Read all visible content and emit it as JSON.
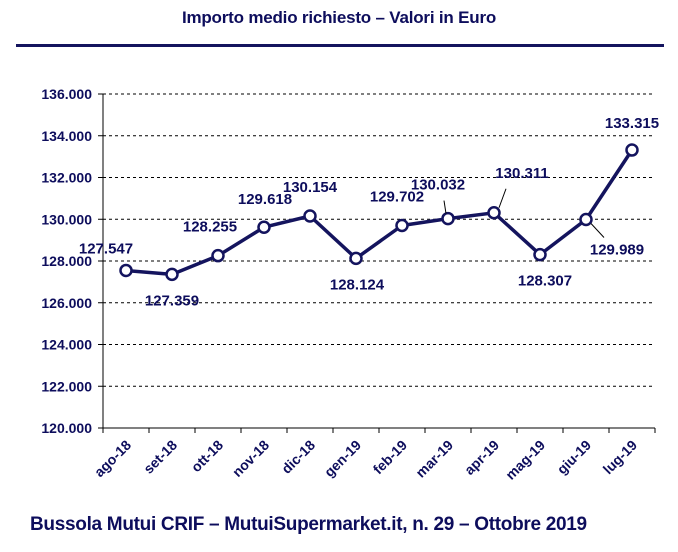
{
  "chart_data": {
    "type": "line",
    "title": "Importo medio richiesto – Valori in Euro",
    "categories": [
      "ago-18",
      "set-18",
      "ott-18",
      "nov-18",
      "dic-18",
      "gen-19",
      "feb-19",
      "mar-19",
      "apr-19",
      "mag-19",
      "giu-19",
      "lug-19"
    ],
    "values": [
      127547,
      127359,
      128255,
      129618,
      130154,
      128124,
      129702,
      130032,
      130311,
      128307,
      129989,
      133315
    ],
    "data_labels": [
      "127.547",
      "127.359",
      "128.255",
      "129.618",
      "130.154",
      "128.124",
      "129.702",
      "130.032",
      "130.311",
      "128.307",
      "129.989",
      "133.315"
    ],
    "ylim": [
      120000,
      136000
    ],
    "y_ticks": [
      120000,
      122000,
      124000,
      126000,
      128000,
      130000,
      132000,
      134000,
      136000
    ],
    "y_tick_labels": [
      "120.000",
      "122.000",
      "124.000",
      "126.000",
      "128.000",
      "130.000",
      "132.000",
      "134.000",
      "136.000"
    ],
    "grid": true,
    "line_color": "#14145e"
  },
  "footer": "Bussola Mutui CRIF – MutuiSupermarket.it, n. 29 – Ottobre 2019"
}
